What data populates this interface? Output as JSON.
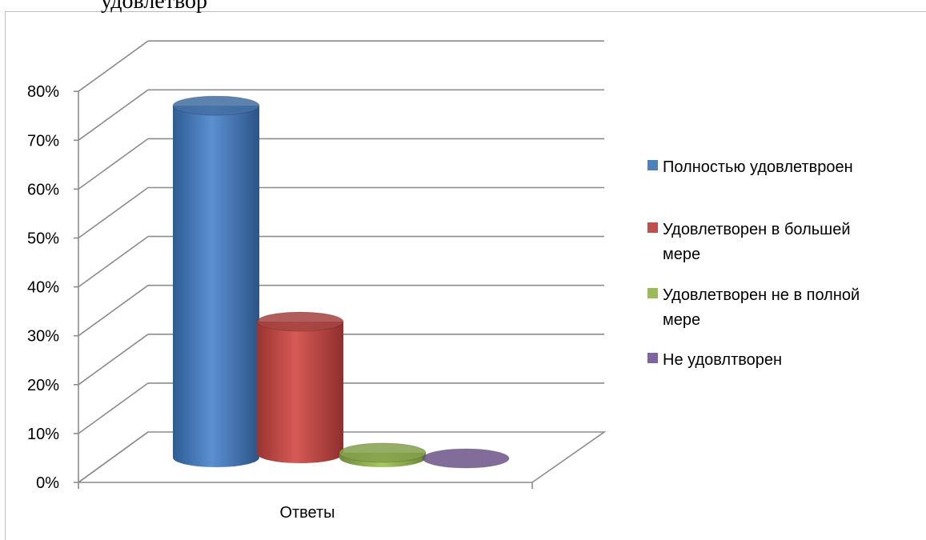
{
  "cut_heading": "удовлетвор",
  "chart_data": {
    "type": "bar",
    "style": "3d-cylinder",
    "categories": [
      "Ответы"
    ],
    "series": [
      {
        "name": "Полностью удовлетвроен",
        "values": [
          72
        ],
        "color": "#4f81bd"
      },
      {
        "name": "Удовлетворен в большей мере",
        "values": [
          27
        ],
        "color": "#c0504d"
      },
      {
        "name": "Удовлетворен не в полной мере",
        "values": [
          1
        ],
        "color": "#9bbb59"
      },
      {
        "name": "Не удовлтворен",
        "values": [
          0
        ],
        "color": "#8064a2"
      }
    ],
    "yticks": [
      "0%",
      "10%",
      "20%",
      "30%",
      "40%",
      "50%",
      "60%",
      "70%",
      "80%"
    ],
    "ylim": [
      0,
      80
    ],
    "grid": true,
    "legend": "right"
  }
}
